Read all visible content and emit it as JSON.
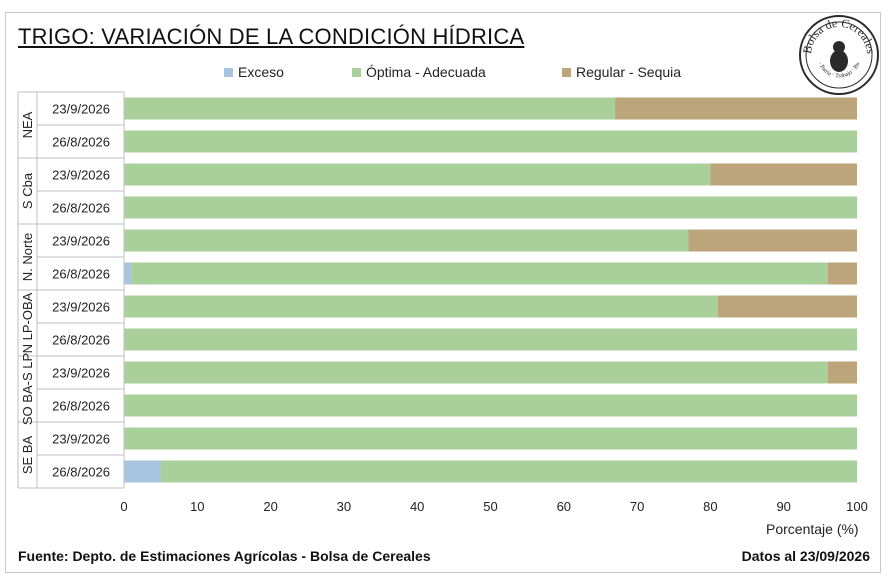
{
  "title": "TRIGO: VARIACIÓN DE LA CONDICIÓN HÍDRICA",
  "logo": {
    "text": "Bolsa de Cereales",
    "subtext": "Comercio · Patria · Trabajo · Buenos Aires",
    "color": "#2b2b2b"
  },
  "legend": [
    {
      "name": "Exceso",
      "color": "#a8c4e0"
    },
    {
      "name": "Óptima - Adecuada",
      "color": "#a9d09a"
    },
    {
      "name": "Regular - Sequia",
      "color": "#bca57a"
    }
  ],
  "chart_data": {
    "type": "bar",
    "orientation": "horizontal",
    "stacked": true,
    "groups": [
      "NEA",
      "S Cba",
      "N. Norte",
      "N LP-OBA",
      "SO BA-S LP",
      "SE BA"
    ],
    "categories": [
      {
        "group": "NEA",
        "date": "23/9/2026"
      },
      {
        "group": "NEA",
        "date": "26/8/2026"
      },
      {
        "group": "S Cba",
        "date": "23/9/2026"
      },
      {
        "group": "S Cba",
        "date": "26/8/2026"
      },
      {
        "group": "N. Norte",
        "date": "23/9/2026"
      },
      {
        "group": "N. Norte",
        "date": "26/8/2026"
      },
      {
        "group": "N LP-OBA",
        "date": "23/9/2026"
      },
      {
        "group": "N LP-OBA",
        "date": "26/8/2026"
      },
      {
        "group": "SO BA-S LP",
        "date": "23/9/2026"
      },
      {
        "group": "SO BA-S LP",
        "date": "26/8/2026"
      },
      {
        "group": "SE BA",
        "date": "23/9/2026"
      },
      {
        "group": "SE BA",
        "date": "26/8/2026"
      }
    ],
    "series": [
      {
        "name": "Exceso",
        "values": [
          0,
          0,
          0,
          0,
          0,
          1,
          0,
          0,
          0,
          0,
          0,
          5
        ]
      },
      {
        "name": "Óptima - Adecuada",
        "values": [
          67,
          100,
          80,
          100,
          77,
          95,
          81,
          100,
          96,
          100,
          100,
          95
        ]
      },
      {
        "name": "Regular - Sequia",
        "values": [
          33,
          0,
          20,
          0,
          23,
          4,
          19,
          0,
          4,
          0,
          0,
          0
        ]
      }
    ],
    "xlim": [
      0,
      100
    ],
    "xticks": [
      0,
      10,
      20,
      30,
      40,
      50,
      60,
      70,
      80,
      90,
      100
    ],
    "xlabel": "Porcentaje (%)",
    "legend_position": "top",
    "grid": false
  },
  "footer": {
    "source": "Fuente: Depto. de Estimaciones Agrícolas - Bolsa de Cereales",
    "date": "Datos al 23/09/2026"
  }
}
